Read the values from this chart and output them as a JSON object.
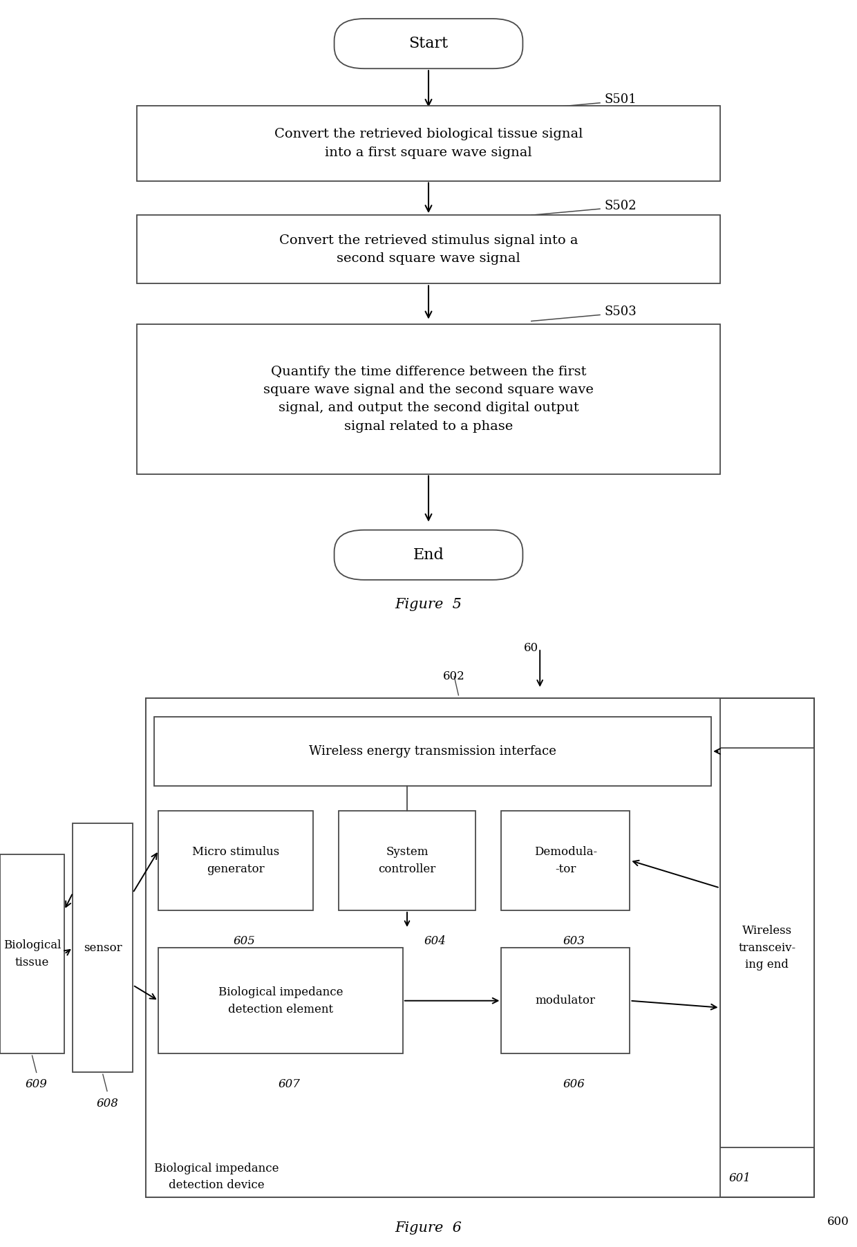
{
  "fig5": {
    "title": "Figure  5",
    "start_label": "Start",
    "end_label": "End",
    "steps": [
      {
        "label": "S501",
        "text": "Convert the retrieved biological tissue signal\ninto a first square wave signal"
      },
      {
        "label": "S502",
        "text": "Convert the retrieved stimulus signal into a\nsecond square wave signal"
      },
      {
        "label": "S503",
        "text": "Quantify the time difference between the first\nsquare wave signal and the second square wave\nsignal, and output the second digital output\nsignal related to a phase"
      }
    ]
  },
  "fig6": {
    "title": "Figure  6",
    "label_600": "600",
    "label_60": "60",
    "label_602": "602",
    "wireless_interface_text": "Wireless energy transmission interface",
    "demodulator_text": "Demodula-\n-tor",
    "label_603": "603",
    "sys_controller_text": "System\ncontroller",
    "label_604": "604",
    "micro_stim_text": "Micro stimulus\ngenerator",
    "label_605": "605",
    "modulator_text": "modulator",
    "label_606": "606",
    "bio_detect_text": "Biological impedance\ndetection element",
    "label_607": "607",
    "sensor_text": "sensor",
    "label_608": "608",
    "bio_tissue_text": "Biological\ntissue",
    "label_609": "609",
    "wireless_end_text": "Wireless\ntransceiv-\ning end",
    "label_601": "601",
    "inner_device_text": "Biological impedance\ndetection device"
  },
  "colors": {
    "bg": "#ffffff",
    "edge": "#4a4a4a",
    "text": "#000000"
  }
}
